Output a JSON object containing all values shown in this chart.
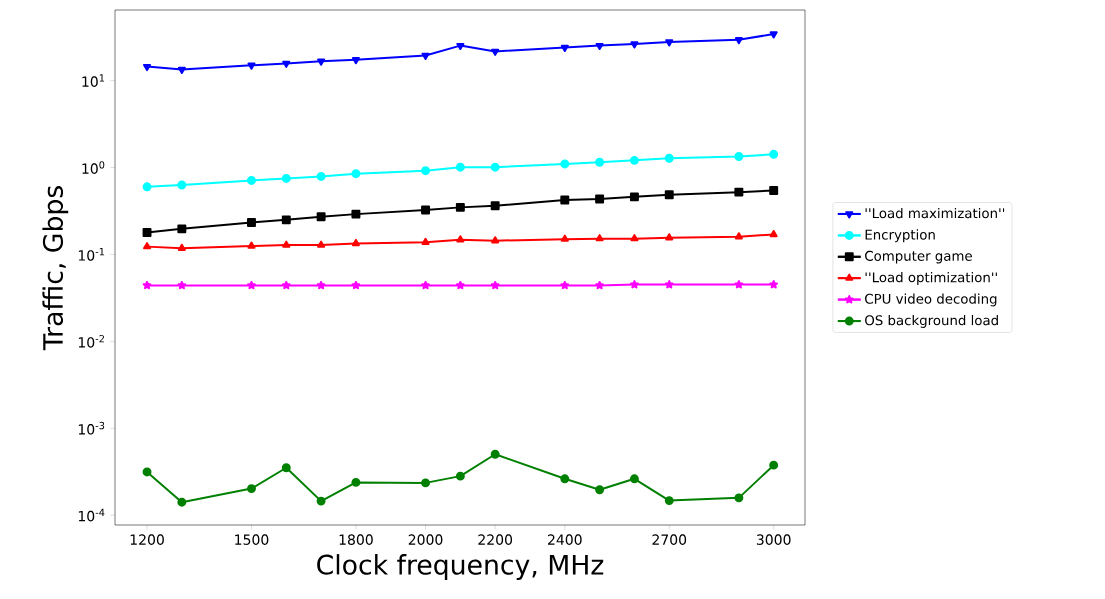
{
  "chart_data": {
    "type": "line",
    "xlabel": "Clock frequency, MHz",
    "ylabel": "Traffic, Gbps",
    "log": "y",
    "x": [
      1200,
      1300,
      1500,
      1600,
      1700,
      1800,
      2000,
      2100,
      2200,
      2400,
      2500,
      2600,
      2700,
      2900,
      3000
    ],
    "xlim": [
      1108,
      3090
    ],
    "ylim": [
      7.7e-05,
      65
    ],
    "xticks": [
      1200,
      1500,
      1800,
      2000,
      2200,
      2400,
      2700,
      3000
    ],
    "yticks": [
      {
        "value": 0.0001,
        "label": "10$^{-4}$"
      },
      {
        "value": 0.001,
        "label": "10$^{-3}$"
      },
      {
        "value": 0.01,
        "label": "10$^{-2}$"
      },
      {
        "value": 0.1,
        "label": "10$^{-1}$"
      },
      {
        "value": 1,
        "label": "10$^{0}$"
      },
      {
        "value": 10,
        "label": "10$^{1}$"
      }
    ],
    "grid": false,
    "legend": "right",
    "line_style": "solid",
    "series": [
      {
        "name": "''Load maximization''",
        "color": "#0000ff",
        "marker": "triangle_down",
        "values": [
          14.5,
          13.4,
          15.0,
          15.8,
          16.7,
          17.4,
          19.5,
          25.3,
          21.7,
          24.0,
          25.3,
          26.4,
          27.9,
          29.5,
          34.4
        ]
      },
      {
        "name": "Encryption",
        "color": "#00ffff",
        "marker": "circle",
        "values": [
          0.6,
          0.63,
          0.71,
          0.75,
          0.79,
          0.85,
          0.92,
          1.01,
          1.01,
          1.1,
          1.15,
          1.21,
          1.28,
          1.34,
          1.42
        ]
      },
      {
        "name": "Computer game",
        "color": "#000000",
        "marker": "square",
        "values": [
          0.179,
          0.197,
          0.233,
          0.25,
          0.272,
          0.291,
          0.325,
          0.348,
          0.363,
          0.423,
          0.435,
          0.46,
          0.486,
          0.521,
          0.543
        ]
      },
      {
        "name": "''Load optimization''",
        "color": "#ff0000",
        "marker": "triangle",
        "values": [
          0.123,
          0.118,
          0.125,
          0.128,
          0.128,
          0.134,
          0.138,
          0.148,
          0.144,
          0.15,
          0.152,
          0.152,
          0.156,
          0.16,
          0.17
        ]
      },
      {
        "name": "CPU video decoding",
        "color": "#ff00ff",
        "marker": "star",
        "values": [
          0.044,
          0.044,
          0.044,
          0.044,
          0.044,
          0.044,
          0.044,
          0.044,
          0.044,
          0.044,
          0.044,
          0.045,
          0.045,
          0.045,
          0.045
        ]
      },
      {
        "name": "OS background load",
        "color": "#008000",
        "marker": "circle",
        "values": [
          0.000314,
          0.000141,
          0.000202,
          0.000351,
          0.000145,
          0.000238,
          0.000235,
          0.000281,
          0.000502,
          0.000262,
          0.000196,
          0.000262,
          0.000147,
          0.000158,
          0.000376
        ]
      }
    ]
  }
}
